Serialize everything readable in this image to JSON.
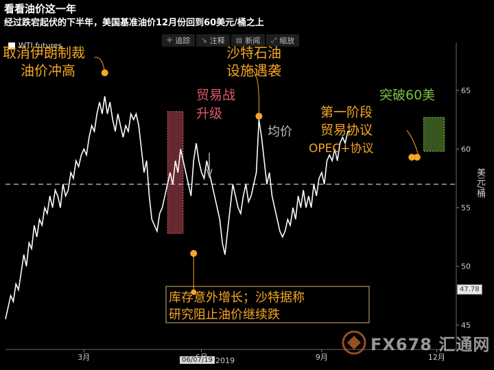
{
  "title": "看看油价这一年",
  "subtitle": "经过跌宕起伏的下半年，美国基准油价12月份回到60美元/桶之上",
  "toolbar": [
    {
      "icon": "move-icon",
      "glyph": "✛",
      "label": "追踪"
    },
    {
      "icon": "annotate-icon",
      "glyph": "↘",
      "label": "注释"
    },
    {
      "icon": "news-icon",
      "glyph": "▤",
      "label": "新闻"
    },
    {
      "icon": "zoom-icon",
      "glyph": "⤢",
      "label": "缩放"
    }
  ],
  "legend_label": "WTI futures",
  "y_axis_title": "美元/桶",
  "last_price": "47.78",
  "date_tag": "06/07/19",
  "year_label": "2019",
  "watermark": "FX678 汇通网",
  "colors": {
    "line": "#ffffff",
    "orange": "#f5a623",
    "red": "#e05a6a",
    "green": "#7cc242",
    "dashed": "#aaaaaa"
  },
  "chart_data": {
    "type": "line",
    "series": [
      {
        "name": "WTI futures",
        "points": [
          [
            0,
            45.5
          ],
          [
            2,
            46.5
          ],
          [
            4,
            47.5
          ],
          [
            6,
            47
          ],
          [
            8,
            48.5
          ],
          [
            10,
            48
          ],
          [
            12,
            49.5
          ],
          [
            14,
            51
          ],
          [
            16,
            50
          ],
          [
            18,
            52
          ],
          [
            20,
            51.5
          ],
          [
            22,
            53.5
          ],
          [
            24,
            52.5
          ],
          [
            26,
            54
          ],
          [
            28,
            53.5
          ],
          [
            30,
            55
          ],
          [
            32,
            54.5
          ],
          [
            34,
            56
          ],
          [
            36,
            55
          ],
          [
            38,
            56.5
          ],
          [
            40,
            56
          ],
          [
            42,
            55
          ],
          [
            44,
            57
          ],
          [
            46,
            56
          ],
          [
            48,
            56.5
          ],
          [
            50,
            58
          ],
          [
            52,
            57.5
          ],
          [
            54,
            59
          ],
          [
            56,
            58.5
          ],
          [
            58,
            59.5
          ],
          [
            60,
            60
          ],
          [
            62,
            59.5
          ],
          [
            64,
            61
          ],
          [
            66,
            62
          ],
          [
            68,
            61.5
          ],
          [
            70,
            63
          ],
          [
            72,
            64
          ],
          [
            74,
            63
          ],
          [
            76,
            64.5
          ],
          [
            78,
            63
          ],
          [
            80,
            64
          ],
          [
            82,
            62.5
          ],
          [
            84,
            61.5
          ],
          [
            86,
            63
          ],
          [
            88,
            62
          ],
          [
            90,
            61
          ],
          [
            92,
            62
          ],
          [
            94,
            61.5
          ],
          [
            96,
            63
          ],
          [
            98,
            62.5
          ],
          [
            100,
            63
          ],
          [
            102,
            62
          ],
          [
            104,
            60
          ],
          [
            106,
            58
          ],
          [
            108,
            59
          ],
          [
            110,
            56
          ],
          [
            112,
            54
          ],
          [
            114,
            53.5
          ],
          [
            116,
            53
          ],
          [
            118,
            54.5
          ],
          [
            120,
            55
          ],
          [
            122,
            56
          ],
          [
            124,
            57
          ],
          [
            126,
            58
          ],
          [
            128,
            57
          ],
          [
            130,
            59
          ],
          [
            132,
            58
          ],
          [
            134,
            60
          ],
          [
            136,
            59
          ],
          [
            138,
            58
          ],
          [
            140,
            57
          ],
          [
            142,
            56
          ],
          [
            144,
            59
          ],
          [
            146,
            60.5
          ],
          [
            148,
            59
          ],
          [
            150,
            58
          ],
          [
            152,
            57.5
          ],
          [
            154,
            59
          ],
          [
            156,
            58
          ],
          [
            158,
            57
          ],
          [
            160,
            56
          ],
          [
            162,
            55
          ],
          [
            164,
            54
          ],
          [
            166,
            52
          ],
          [
            168,
            51
          ],
          [
            170,
            53
          ],
          [
            172,
            55
          ],
          [
            174,
            57
          ],
          [
            176,
            56
          ],
          [
            178,
            55
          ],
          [
            180,
            54.5
          ],
          [
            182,
            56
          ],
          [
            184,
            57
          ],
          [
            186,
            55.5
          ],
          [
            188,
            56
          ],
          [
            190,
            57
          ],
          [
            192,
            58
          ],
          [
            194,
            62.5
          ],
          [
            196,
            61
          ],
          [
            198,
            59
          ],
          [
            200,
            57
          ],
          [
            202,
            58
          ],
          [
            204,
            56
          ],
          [
            206,
            55
          ],
          [
            208,
            54
          ],
          [
            210,
            53
          ],
          [
            212,
            52.5
          ],
          [
            214,
            53
          ],
          [
            216,
            54
          ],
          [
            218,
            53.5
          ],
          [
            220,
            55
          ],
          [
            222,
            54
          ],
          [
            224,
            56
          ],
          [
            226,
            55
          ],
          [
            228,
            56.5
          ],
          [
            230,
            55
          ],
          [
            232,
            56
          ],
          [
            234,
            55
          ],
          [
            236,
            57
          ],
          [
            238,
            56
          ],
          [
            240,
            57.5
          ],
          [
            242,
            58
          ],
          [
            244,
            57
          ],
          [
            246,
            59
          ],
          [
            248,
            59.5
          ],
          [
            250,
            59
          ],
          [
            252,
            60
          ],
          [
            254,
            59
          ],
          [
            256,
            60.5
          ],
          [
            258,
            61
          ],
          [
            260,
            60.5
          ],
          [
            262,
            61.5
          ],
          [
            264,
            61.5
          ]
        ]
      }
    ],
    "x_ticks": [
      {
        "x": 60,
        "label": "3月"
      },
      {
        "x": 150,
        "label": "6月"
      },
      {
        "x": 242,
        "label": "9月"
      },
      {
        "x": 330,
        "label": "12月"
      }
    ],
    "y_ticks": [
      45,
      50,
      55,
      60,
      65
    ],
    "xlim": [
      0,
      345
    ],
    "ylim": [
      43.5,
      68.5
    ],
    "dashed_line": 57,
    "annotations": [
      {
        "text": [
          "取消伊朗制裁",
          "油价冲高"
        ],
        "color": "orange"
      },
      {
        "text": [
          "贸易战",
          "升级"
        ],
        "color": "red"
      },
      {
        "text": [
          "均价"
        ],
        "color": "gray"
      },
      {
        "text": [
          "沙特石油",
          "设施遇袭"
        ],
        "color": "orange"
      },
      {
        "text": [
          "第一阶段",
          "贸易协议"
        ],
        "color": "orange"
      },
      {
        "text": [
          "OPEC+协议"
        ],
        "color": "orange"
      },
      {
        "text": [
          "突破60美"
        ],
        "color": "green"
      },
      {
        "text": [
          "库存意外增长；沙特据称",
          "研究阻止油价继续跌"
        ],
        "color": "orange"
      }
    ]
  }
}
